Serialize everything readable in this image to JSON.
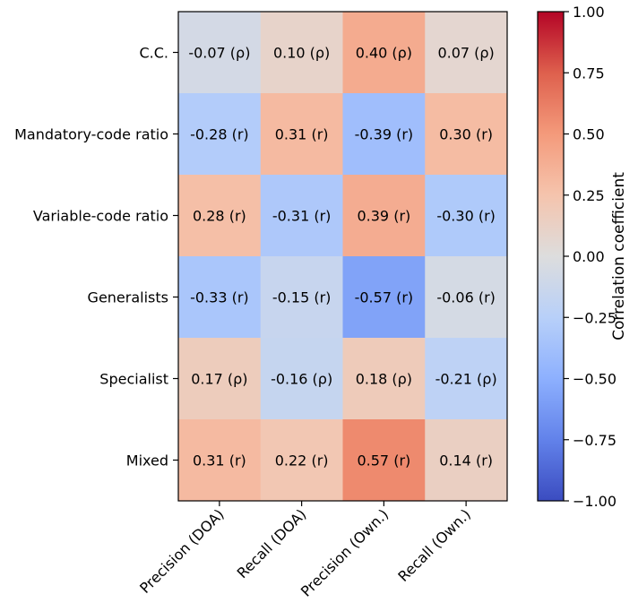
{
  "chart_data": {
    "type": "heatmap",
    "rows": [
      "C.C.",
      "Mandatory-code ratio",
      "Variable-code ratio",
      "Generalists",
      "Specialist",
      "Mixed"
    ],
    "columns": [
      "Precision (DOA)",
      "Recall (DOA)",
      "Precision (Own.)",
      "Recall (Own.)"
    ],
    "values": [
      [
        -0.07,
        0.1,
        0.4,
        0.07
      ],
      [
        -0.28,
        0.31,
        -0.39,
        0.3
      ],
      [
        0.28,
        -0.31,
        0.39,
        -0.3
      ],
      [
        -0.33,
        -0.15,
        -0.57,
        -0.06
      ],
      [
        0.17,
        -0.16,
        0.18,
        -0.21
      ],
      [
        0.31,
        0.22,
        0.57,
        0.14
      ]
    ],
    "cell_labels": [
      [
        "-0.07 (ρ)",
        "0.10 (ρ)",
        "0.40 (ρ)",
        "0.07 (ρ)"
      ],
      [
        "-0.28 (r)",
        "0.31 (r)",
        "-0.39 (r)",
        "0.30 (r)"
      ],
      [
        "0.28 (r)",
        "-0.31 (r)",
        "0.39 (r)",
        "-0.30 (r)"
      ],
      [
        "-0.33 (r)",
        "-0.15 (r)",
        "-0.57 (r)",
        "-0.06 (r)"
      ],
      [
        "0.17 (ρ)",
        "-0.16 (ρ)",
        "0.18 (ρ)",
        "-0.21 (ρ)"
      ],
      [
        "0.31 (r)",
        "0.22 (r)",
        "0.57 (r)",
        "0.14 (r)"
      ]
    ],
    "colormap": "coolwarm",
    "vmin": -1.0,
    "vmax": 1.0,
    "colorbar": {
      "label": "Correlation coefficient",
      "ticks": [
        1.0,
        0.75,
        0.5,
        0.25,
        0.0,
        -0.25,
        -0.5,
        -0.75,
        -1.0
      ],
      "tick_labels": [
        "1.00",
        "0.75",
        "0.50",
        "0.25",
        "0.00",
        "−0.25",
        "−0.50",
        "−0.75",
        "−1.00"
      ]
    },
    "colors": {
      "cool_end": "#3b4cc0",
      "mid": "#dddddd",
      "warm_end": "#b40426",
      "light_text": "#ffffff",
      "dark_text": "#000000"
    }
  }
}
